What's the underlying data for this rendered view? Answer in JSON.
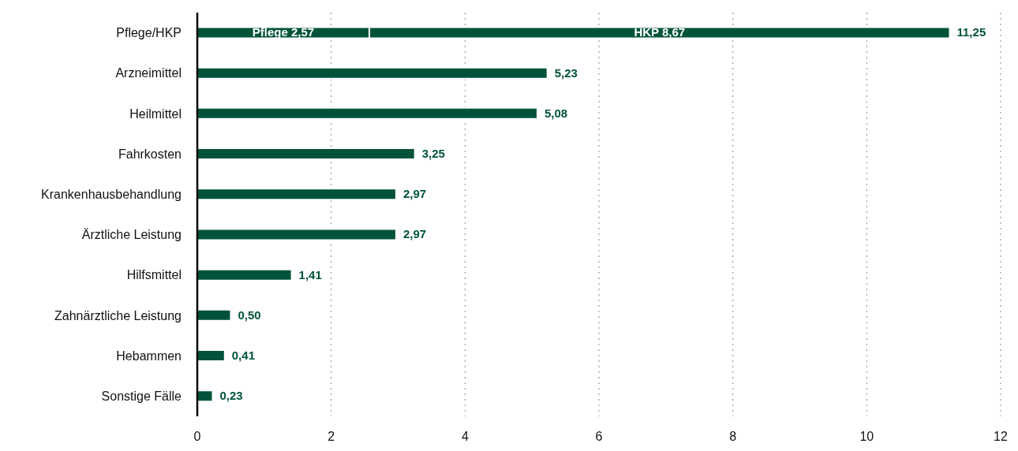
{
  "chart_data": {
    "type": "bar",
    "orientation": "horizontal",
    "stacked": true,
    "categories": [
      "Pflege/HKP",
      "Arzneimittel",
      "Heilmittel",
      "Fahrkosten",
      "Krankenhausbehandlung",
      "Ärztliche Leistung",
      "Hilfsmittel",
      "Zahnärztliche Leistung",
      "Hebammen",
      "Sonstige Fälle"
    ],
    "series": [
      {
        "name": "Pflege",
        "color": "#00533a",
        "values": [
          2.57,
          5.23,
          5.08,
          3.25,
          2.97,
          2.97,
          1.41,
          0.5,
          0.41,
          0.23
        ],
        "value_labels": [
          "2,57",
          null,
          null,
          null,
          null,
          null,
          null,
          null,
          null,
          null
        ]
      },
      {
        "name": "HKP",
        "color": "#00533a",
        "values": [
          8.67,
          null,
          null,
          null,
          null,
          null,
          null,
          null,
          null,
          null
        ],
        "value_labels": [
          "8,67",
          null,
          null,
          null,
          null,
          null,
          null,
          null,
          null,
          null
        ]
      }
    ],
    "totals": [
      "11,25",
      "5,23",
      "5,08",
      "3,25",
      "2,97",
      "2,97",
      "1,41",
      "0,50",
      "0,41",
      "0,23"
    ],
    "xlim": [
      0,
      12
    ],
    "xticks": [
      0,
      2,
      4,
      6,
      8,
      10,
      12
    ],
    "grid": "x"
  }
}
